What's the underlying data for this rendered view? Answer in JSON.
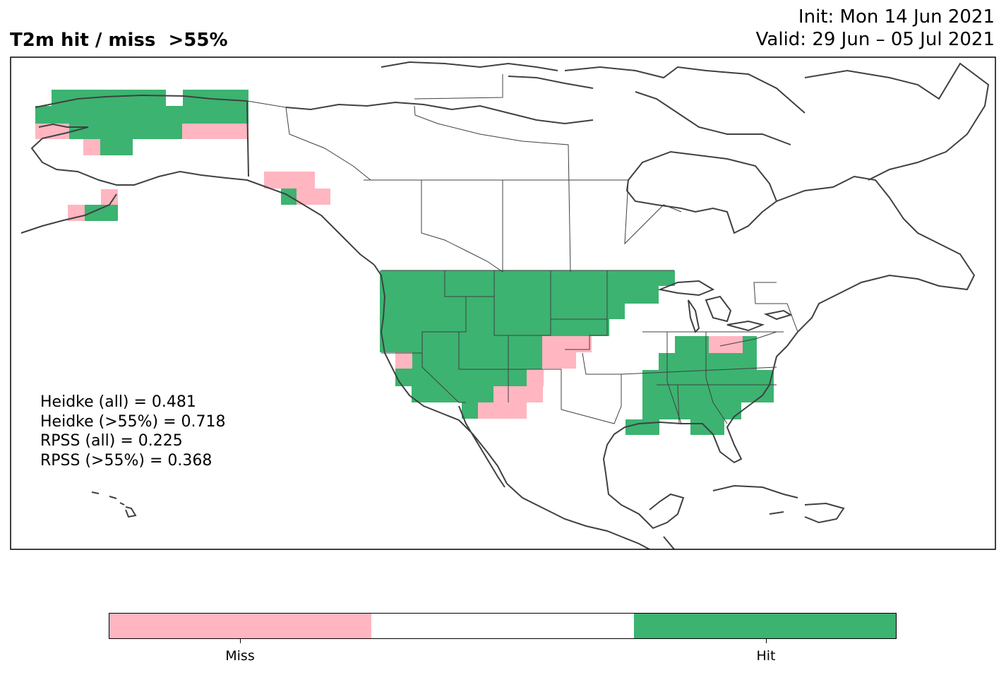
{
  "title": {
    "left": "T2m hit / miss  >55%",
    "init": "Init: Mon 14 Jun 2021",
    "valid": "Valid: 29 Jun – 05 Jul 2021"
  },
  "stats": [
    "Heidke (all) = 0.481",
    "Heidke (>55%) = 0.718",
    "RPSS (all) = 0.225",
    "RPSS (>55%) = 0.368"
  ],
  "legend": {
    "categories": [
      "Miss",
      "",
      "Hit"
    ],
    "labels": {
      "miss": "Miss",
      "hit": "Hit"
    }
  },
  "colors": {
    "miss": "#ffb6c1",
    "neutral": "#ffffff",
    "hit": "#3cb371",
    "outline": "#404040",
    "frame": "#000000"
  },
  "map": {
    "region": "North America",
    "overlay": "gridded hit / miss cells"
  }
}
